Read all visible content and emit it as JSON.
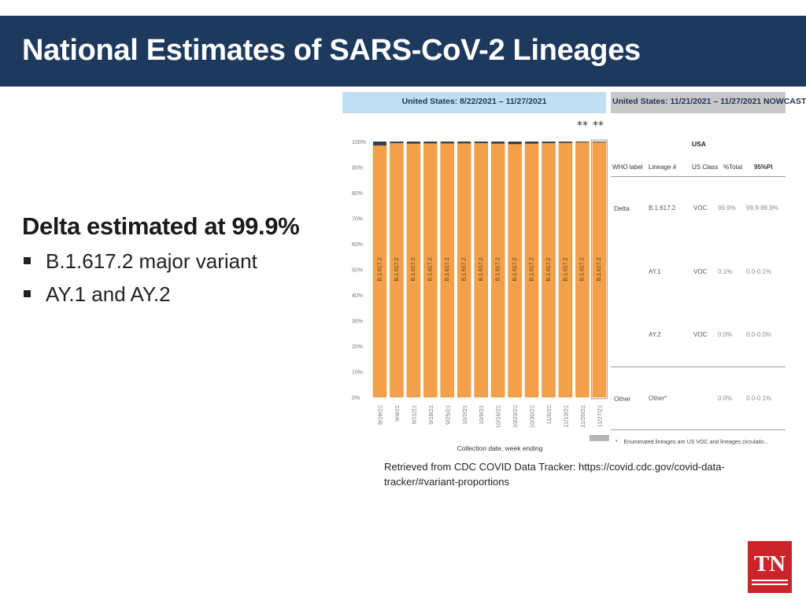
{
  "slide": {
    "title": "National Estimates of SARS-CoV-2 Lineages",
    "lead": "Delta estimated at 99.9%",
    "bullets": [
      "B.1.617.2 major variant",
      "AY.1 and AY.2"
    ],
    "source": "Retrieved from CDC COVID Data Tracker: https://covid.cdc.gov/covid-data-tracker/#variant-proportions",
    "logo_text": "TN"
  },
  "colors": {
    "title_bar": "#1d3a5e",
    "delta_bar": "#f2a04a",
    "delta_bar_edge": "#e3913a",
    "other_cap": "#2f3f52",
    "header_left_bg": "#bfe0f2",
    "header_right_bg": "#c8c8c8",
    "logo_bg": "#cc2229"
  },
  "chart_data": {
    "type": "bar",
    "stacked": true,
    "header": "United States: 8/22/2021 – 11/27/2021",
    "xlabel": "Collection date, week ending",
    "ylim": [
      0,
      100
    ],
    "yticks": [
      "0%",
      "10%",
      "20%",
      "30%",
      "40%",
      "50%",
      "60%",
      "70%",
      "80%",
      "90%",
      "100%"
    ],
    "categories": [
      "8/28/21",
      "9/4/21",
      "9/11/21",
      "9/18/21",
      "9/25/21",
      "10/2/21",
      "10/9/21",
      "10/16/21",
      "10/23/21",
      "10/30/21",
      "11/6/21",
      "11/13/21",
      "11/20/21",
      "11/27/21"
    ],
    "series": [
      {
        "name": "B.1.617.2",
        "values": [
          98.5,
          99.4,
          99.2,
          99.3,
          99.3,
          99.3,
          99.4,
          99.2,
          99.0,
          99.2,
          99.4,
          99.5,
          99.7,
          99.9
        ]
      },
      {
        "name": "",
        "values": [
          1.5,
          0.6,
          0.8,
          0.7,
          0.7,
          0.7,
          0.6,
          0.8,
          1.0,
          0.8,
          0.6,
          0.5,
          0.3,
          0.1
        ]
      }
    ],
    "annotations": {
      "asterisks": [
        "**",
        "**"
      ]
    },
    "grid": false,
    "legend": "none"
  },
  "nowcast_table": {
    "header": "United States: 11/21/2021 – 11/27/2021 NOWCAST",
    "country": "USA",
    "columns": [
      "WHO label",
      "Lineage #",
      "US Class",
      "%Total",
      "95%PI"
    ],
    "rows": [
      {
        "who": "Delta",
        "lineage": "B.1.617.2",
        "class": "VOC",
        "total": "99.9%",
        "pi": "99.9-99.9%"
      },
      {
        "who": "",
        "lineage": "AY.1",
        "class": "VOC",
        "total": "0.1%",
        "pi": "0.0-0.1%"
      },
      {
        "who": "",
        "lineage": "AY.2",
        "class": "VOC",
        "total": "0.0%",
        "pi": "0.0-0.0%"
      },
      {
        "who": "Other",
        "lineage": "Other*",
        "class": "",
        "total": "0.0%",
        "pi": "0.0-0.1%"
      }
    ],
    "footnote": "Enumerated lineages are US VOC and lineages circulatin..."
  }
}
